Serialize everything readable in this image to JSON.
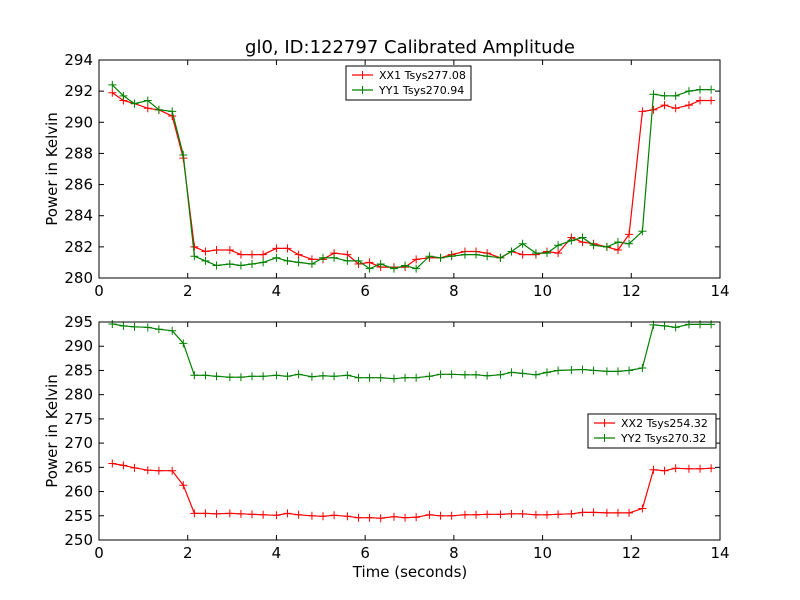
{
  "chart_data": [
    {
      "type": "line",
      "title": "gl0, ID:122797 Calibrated Amplitude",
      "xlabel": "",
      "ylabel": "Power in Kelvin",
      "xlim": [
        0,
        14
      ],
      "ylim": [
        280,
        294
      ],
      "xticks": [
        0,
        2,
        4,
        6,
        8,
        10,
        12,
        14
      ],
      "yticks": [
        280,
        282,
        284,
        286,
        288,
        290,
        292,
        294
      ],
      "grid": false,
      "legend_position": "top-center",
      "x": [
        0.3,
        0.55,
        0.8,
        1.1,
        1.35,
        1.65,
        1.9,
        2.15,
        2.4,
        2.65,
        2.95,
        3.2,
        3.45,
        3.7,
        4.0,
        4.25,
        4.5,
        4.8,
        5.05,
        5.3,
        5.6,
        5.85,
        6.1,
        6.35,
        6.65,
        6.9,
        7.15,
        7.45,
        7.7,
        7.95,
        8.25,
        8.5,
        8.75,
        9.05,
        9.3,
        9.55,
        9.85,
        10.1,
        10.35,
        10.65,
        10.9,
        11.15,
        11.45,
        11.7,
        11.95,
        12.25,
        12.5,
        12.75,
        13.0,
        13.3,
        13.55,
        13.8
      ],
      "series": [
        {
          "name": "XX1 Tsys277.08",
          "color": "#ff0000",
          "values": [
            291.9,
            291.4,
            291.2,
            290.9,
            290.8,
            290.4,
            287.7,
            282.0,
            281.7,
            281.8,
            281.8,
            281.5,
            281.5,
            281.5,
            281.9,
            281.9,
            281.5,
            281.2,
            281.2,
            281.6,
            281.5,
            280.9,
            281.0,
            280.7,
            280.7,
            280.7,
            281.2,
            281.3,
            281.3,
            281.5,
            281.7,
            281.7,
            281.6,
            281.3,
            281.7,
            281.5,
            281.5,
            281.7,
            281.6,
            282.6,
            282.3,
            282.2,
            282.0,
            281.8,
            282.8,
            290.7,
            290.8,
            291.1,
            290.9,
            291.1,
            291.4,
            291.4
          ]
        },
        {
          "name": "YY1 Tsys270.94",
          "color": "#008000",
          "values": [
            292.4,
            291.7,
            291.2,
            291.4,
            290.8,
            290.7,
            287.9,
            281.4,
            281.1,
            280.8,
            280.9,
            280.8,
            280.9,
            281.0,
            281.3,
            281.1,
            281.0,
            280.9,
            281.3,
            281.3,
            281.1,
            281.1,
            280.6,
            280.9,
            280.6,
            280.8,
            280.6,
            281.4,
            281.3,
            281.4,
            281.5,
            281.5,
            281.4,
            281.3,
            281.7,
            282.2,
            281.6,
            281.6,
            282.1,
            282.4,
            282.6,
            282.1,
            282.0,
            282.3,
            282.2,
            283.0,
            291.8,
            291.7,
            291.7,
            292.0,
            292.1,
            292.1
          ]
        }
      ]
    },
    {
      "type": "line",
      "title": "",
      "xlabel": "Time (seconds)",
      "ylabel": "Power in Kelvin",
      "xlim": [
        0,
        14
      ],
      "ylim": [
        250,
        295
      ],
      "xticks": [
        0,
        2,
        4,
        6,
        8,
        10,
        12,
        14
      ],
      "yticks": [
        250,
        255,
        260,
        265,
        270,
        275,
        280,
        285,
        290,
        295
      ],
      "grid": false,
      "legend_position": "center-right",
      "x": [
        0.3,
        0.55,
        0.8,
        1.1,
        1.35,
        1.65,
        1.9,
        2.15,
        2.4,
        2.65,
        2.95,
        3.2,
        3.45,
        3.7,
        4.0,
        4.25,
        4.5,
        4.8,
        5.05,
        5.3,
        5.6,
        5.85,
        6.1,
        6.35,
        6.65,
        6.9,
        7.15,
        7.45,
        7.7,
        7.95,
        8.25,
        8.5,
        8.75,
        9.05,
        9.3,
        9.55,
        9.85,
        10.1,
        10.35,
        10.65,
        10.9,
        11.15,
        11.45,
        11.7,
        11.95,
        12.25,
        12.5,
        12.75,
        13.0,
        13.3,
        13.55,
        13.8
      ],
      "series": [
        {
          "name": "XX2 Tsys254.32",
          "color": "#ff0000",
          "values": [
            265.8,
            265.4,
            264.9,
            264.4,
            264.3,
            264.3,
            261.3,
            255.5,
            255.5,
            255.4,
            255.5,
            255.4,
            255.3,
            255.2,
            255.1,
            255.5,
            255.2,
            255.0,
            254.9,
            255.1,
            254.9,
            254.6,
            254.6,
            254.5,
            254.8,
            254.6,
            254.7,
            255.2,
            255.0,
            255.0,
            255.2,
            255.2,
            255.3,
            255.3,
            255.4,
            255.4,
            255.2,
            255.2,
            255.3,
            255.4,
            255.7,
            255.7,
            255.6,
            255.6,
            255.6,
            256.5,
            264.5,
            264.3,
            264.8,
            264.7,
            264.7,
            264.8
          ]
        },
        {
          "name": "YY2 Tsys270.32",
          "color": "#008000",
          "values": [
            294.6,
            294.2,
            294.0,
            293.9,
            293.5,
            293.2,
            290.6,
            284.0,
            284.0,
            283.8,
            283.6,
            283.6,
            283.8,
            283.8,
            284.0,
            283.8,
            284.2,
            283.7,
            283.9,
            283.8,
            284.0,
            283.5,
            283.5,
            283.5,
            283.3,
            283.5,
            283.5,
            283.8,
            284.2,
            284.2,
            284.1,
            284.1,
            283.9,
            284.1,
            284.6,
            284.4,
            284.1,
            284.6,
            285.0,
            285.1,
            285.2,
            285.0,
            284.8,
            284.8,
            285.0,
            285.5,
            294.4,
            294.2,
            293.9,
            294.5,
            294.5,
            294.5
          ]
        }
      ]
    }
  ]
}
